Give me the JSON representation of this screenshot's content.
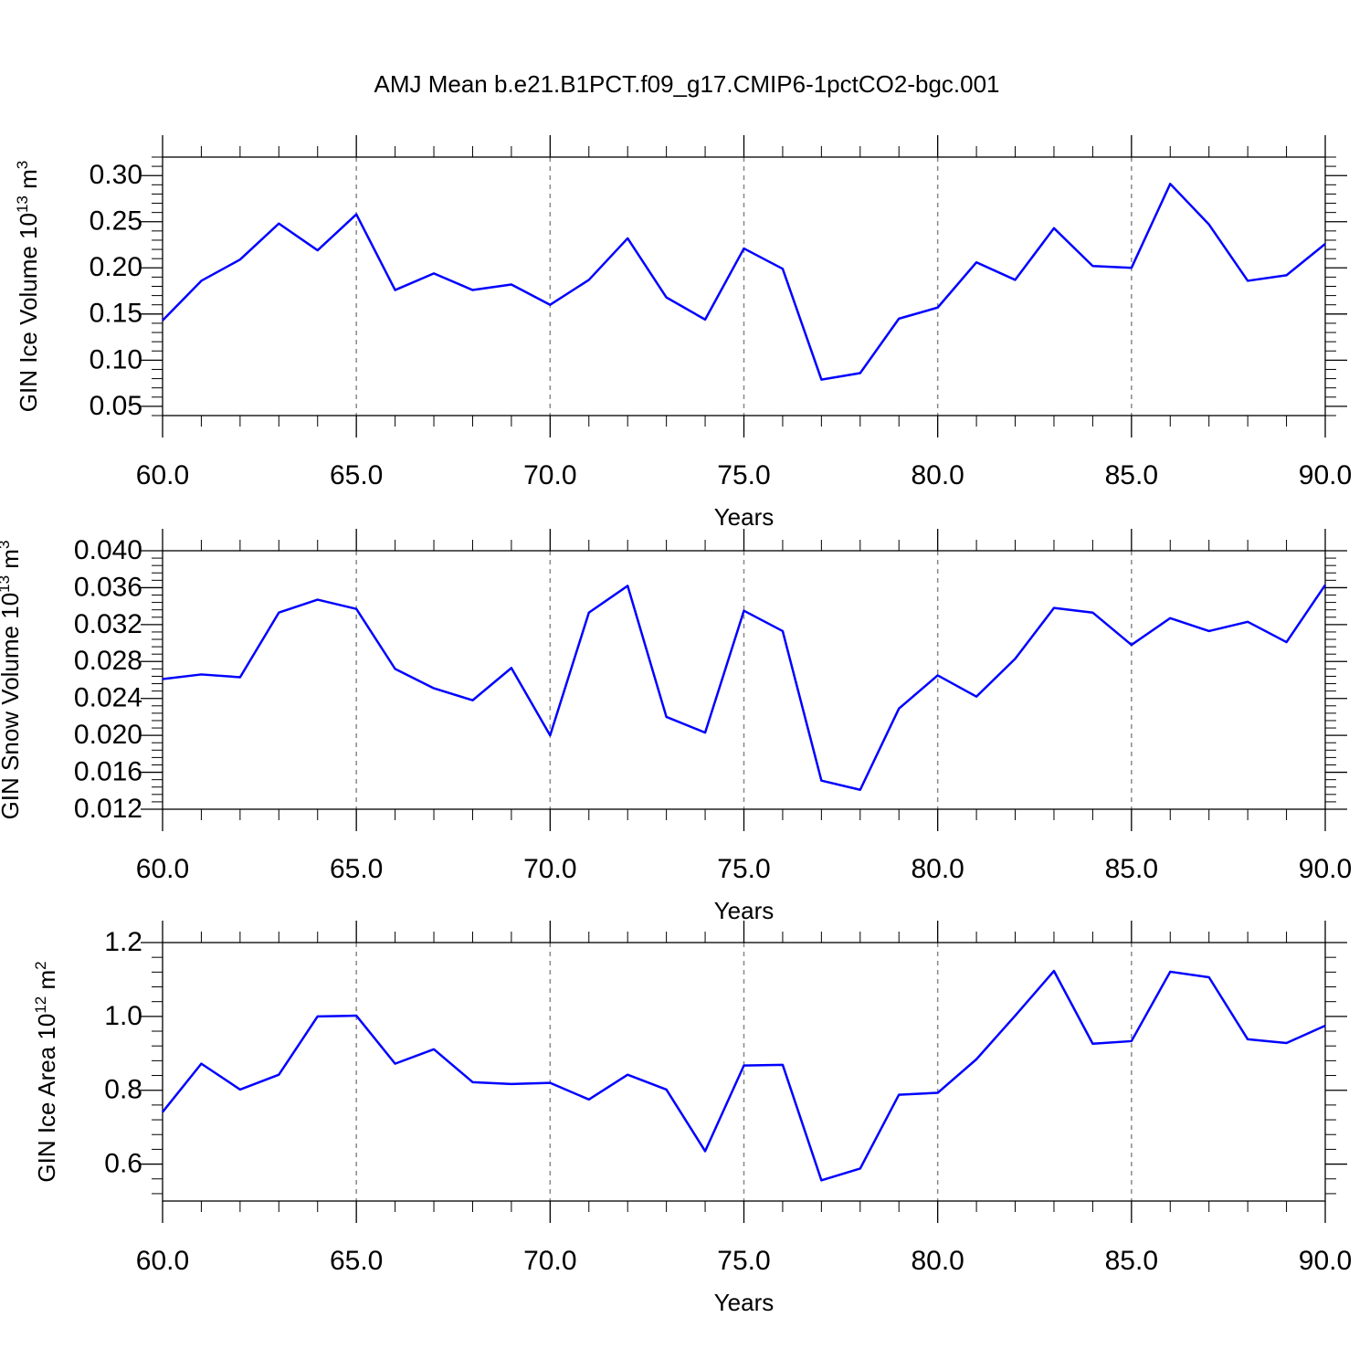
{
  "title": "AMJ Mean b.e21.B1PCT.f09_g17.CMIP6-1pctCO2-bgc.001",
  "chart_data": [
    {
      "type": "line",
      "xlabel": "Years",
      "ylabel": [
        "GIN Ice Volume 10",
        "13",
        " m",
        "3"
      ],
      "x": [
        60,
        61,
        62,
        63,
        64,
        65,
        66,
        67,
        68,
        69,
        70,
        71,
        72,
        73,
        74,
        75,
        76,
        77,
        78,
        79,
        80,
        81,
        82,
        83,
        84,
        85,
        86,
        87,
        88,
        89,
        90
      ],
      "y": [
        0.143,
        0.186,
        0.209,
        0.248,
        0.219,
        0.258,
        0.176,
        0.194,
        0.176,
        0.182,
        0.16,
        0.187,
        0.232,
        0.168,
        0.144,
        0.221,
        0.199,
        0.079,
        0.086,
        0.145,
        0.157,
        0.206,
        0.187,
        0.243,
        0.202,
        0.2,
        0.291,
        0.247,
        0.186,
        0.192,
        0.226
      ],
      "color": "#0000ff",
      "grid": true,
      "xlim": [
        60,
        90
      ],
      "xticks": [
        {
          "value": 60,
          "label": "60.0"
        },
        {
          "value": 65,
          "label": "65.0"
        },
        {
          "value": 70,
          "label": "70.0"
        },
        {
          "value": 75,
          "label": "75.0"
        },
        {
          "value": 80,
          "label": "80.0"
        },
        {
          "value": 85,
          "label": "85.0"
        },
        {
          "value": 90,
          "label": "90.0"
        }
      ],
      "ylim": [
        0.04,
        0.32
      ],
      "yticks": [
        0.05,
        {
          "value": 0.1,
          "label": "0.10"
        },
        0.15,
        {
          "value": 0.2,
          "label": "0.20"
        },
        0.25,
        {
          "value": 0.3,
          "label": "0.30"
        }
      ]
    },
    {
      "type": "line",
      "xlabel": "Years",
      "ylabel": [
        "GIN Snow Volume 10",
        "13",
        " m",
        "3"
      ],
      "x": [
        60,
        61,
        62,
        63,
        64,
        65,
        66,
        67,
        68,
        69,
        70,
        71,
        72,
        73,
        74,
        75,
        76,
        77,
        78,
        79,
        80,
        81,
        82,
        83,
        84,
        85,
        86,
        87,
        88,
        89,
        90
      ],
      "y": [
        0.0261,
        0.0266,
        0.0263,
        0.0333,
        0.0347,
        0.0337,
        0.0272,
        0.0251,
        0.0238,
        0.0273,
        0.02,
        0.0333,
        0.0362,
        0.022,
        0.0203,
        0.0335,
        0.0313,
        0.0151,
        0.0141,
        0.0229,
        0.0265,
        0.0242,
        0.0283,
        0.0338,
        0.0333,
        0.0298,
        0.0327,
        0.0313,
        0.0323,
        0.0301,
        0.0363
      ],
      "color": "#0000ff",
      "grid": true,
      "xlim": [
        60,
        90
      ],
      "xticks": [
        {
          "value": 60,
          "label": "60.0"
        },
        {
          "value": 65,
          "label": "65.0"
        },
        {
          "value": 70,
          "label": "70.0"
        },
        {
          "value": 75,
          "label": "75.0"
        },
        {
          "value": 80,
          "label": "80.0"
        },
        {
          "value": 85,
          "label": "85.0"
        },
        {
          "value": 90,
          "label": "90.0"
        }
      ],
      "ylim": [
        0.012,
        0.04
      ],
      "yticks": [
        0.012,
        0.016,
        {
          "value": 0.02,
          "label": "0.020"
        },
        0.024,
        0.028,
        0.032,
        0.036,
        {
          "value": 0.04,
          "label": "0.040"
        }
      ]
    },
    {
      "type": "line",
      "xlabel": "Years",
      "ylabel": [
        "GIN Ice Area 10",
        "12",
        " m",
        "2"
      ],
      "x": [
        60,
        61,
        62,
        63,
        64,
        65,
        66,
        67,
        68,
        69,
        70,
        71,
        72,
        73,
        74,
        75,
        76,
        77,
        78,
        79,
        80,
        81,
        82,
        83,
        84,
        85,
        86,
        87,
        88,
        89,
        90
      ],
      "y": [
        0.741,
        0.872,
        0.802,
        0.842,
        1.0,
        1.002,
        0.872,
        0.911,
        0.822,
        0.817,
        0.82,
        0.775,
        0.842,
        0.802,
        0.635,
        0.867,
        0.869,
        0.556,
        0.588,
        0.788,
        0.793,
        0.884,
        1.002,
        1.123,
        0.926,
        0.933,
        1.121,
        1.106,
        0.938,
        0.928,
        0.975
      ],
      "color": "#0000ff",
      "grid": true,
      "xlim": [
        60,
        90
      ],
      "xticks": [
        {
          "value": 60,
          "label": "60.0"
        },
        {
          "value": 65,
          "label": "65.0"
        },
        {
          "value": 70,
          "label": "70.0"
        },
        {
          "value": 75,
          "label": "75.0"
        },
        {
          "value": 80,
          "label": "80.0"
        },
        {
          "value": 85,
          "label": "85.0"
        },
        {
          "value": 90,
          "label": "90.0"
        }
      ],
      "ylim": [
        0.5,
        1.2
      ],
      "yticks": [
        0.6,
        0.8,
        {
          "value": 1.0,
          "label": "1.0"
        },
        1.2
      ]
    }
  ]
}
